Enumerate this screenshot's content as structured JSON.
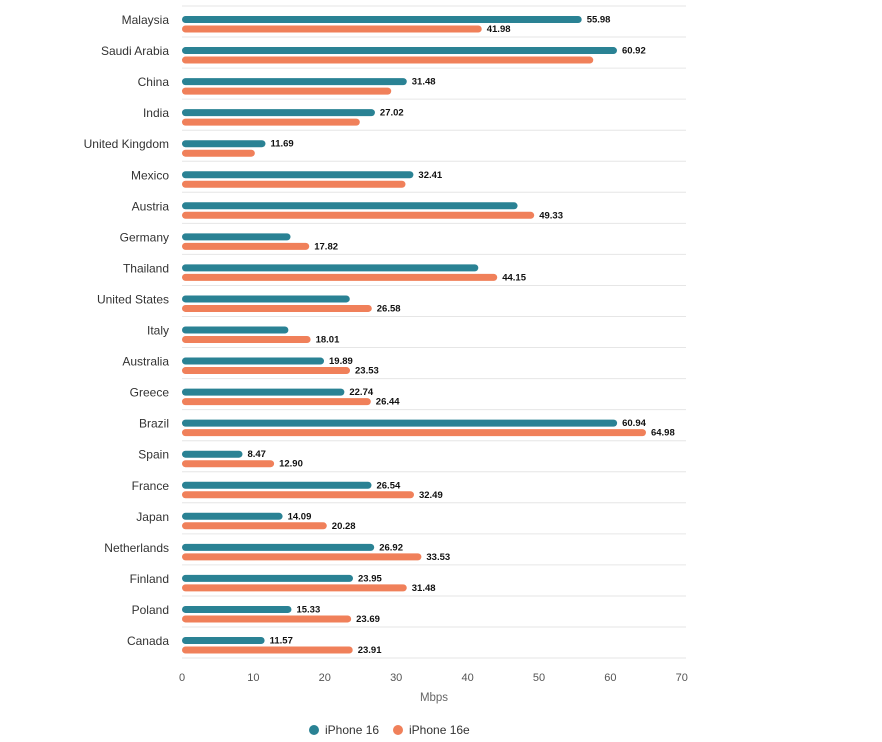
{
  "chart_data": {
    "type": "bar",
    "orientation": "horizontal",
    "xlabel": "Mbps",
    "xlim": [
      0,
      70
    ],
    "xticks": [
      0,
      10,
      20,
      30,
      40,
      50,
      60,
      70
    ],
    "legend_position": "bottom-center",
    "categories": [
      "Malaysia",
      "Saudi Arabia",
      "China",
      "India",
      "United Kingdom",
      "Mexico",
      "Austria",
      "Germany",
      "Thailand",
      "United States",
      "Italy",
      "Australia",
      "Greece",
      "Brazil",
      "Spain",
      "France",
      "Japan",
      "Netherlands",
      "Finland",
      "Poland",
      "Canada"
    ],
    "series": [
      {
        "name": "iPhone 16",
        "color": "#2a8294",
        "values": [
          55.98,
          60.92,
          31.48,
          27.02,
          11.69,
          32.41,
          47.0,
          15.2,
          41.5,
          23.5,
          14.9,
          19.89,
          22.74,
          60.94,
          8.47,
          26.54,
          14.09,
          26.92,
          23.95,
          15.33,
          11.57
        ],
        "labels": [
          "55.98",
          "60.92",
          "31.48",
          "27.02",
          "11.69",
          "32.41",
          "",
          "",
          "",
          "",
          "",
          "19.89",
          "22.74",
          "60.94",
          "8.47",
          "26.54",
          "14.09",
          "26.92",
          "23.95",
          "15.33",
          "11.57"
        ]
      },
      {
        "name": "iPhone 16e",
        "color": "#f0805a",
        "values": [
          41.98,
          57.6,
          29.3,
          24.9,
          10.2,
          31.3,
          49.33,
          17.82,
          44.15,
          26.58,
          18.01,
          23.53,
          26.44,
          64.98,
          12.9,
          32.49,
          20.28,
          33.53,
          31.48,
          23.69,
          23.91
        ],
        "labels": [
          "41.98",
          "",
          "",
          "",
          "",
          "",
          "49.33",
          "17.82",
          "44.15",
          "26.58",
          "18.01",
          "23.53",
          "26.44",
          "64.98",
          "12.90",
          "32.49",
          "20.28",
          "33.53",
          "31.48",
          "23.69",
          "23.91"
        ]
      }
    ]
  }
}
